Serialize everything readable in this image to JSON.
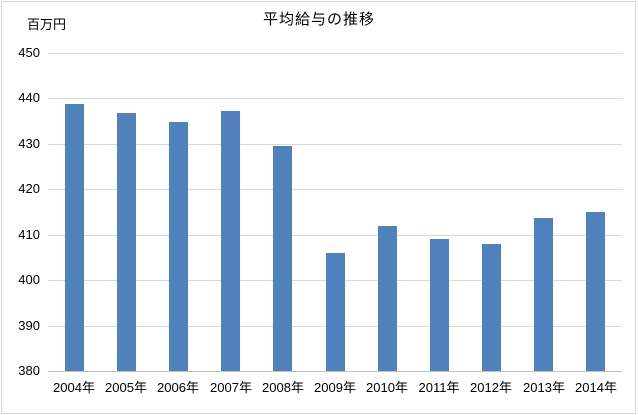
{
  "chart_data": {
    "type": "bar",
    "title": "平均給与の推移",
    "unit_label": "百万円",
    "categories": [
      "2004年",
      "2005年",
      "2006年",
      "2007年",
      "2008年",
      "2009年",
      "2010年",
      "2011年",
      "2012年",
      "2013年",
      "2014年"
    ],
    "values": [
      438.8,
      436.8,
      434.9,
      437.2,
      429.6,
      405.9,
      412.0,
      409.0,
      408.0,
      413.6,
      415.0
    ],
    "xlabel": "",
    "ylabel": "百万円",
    "ylim": [
      380,
      450
    ],
    "yticks": [
      450,
      440,
      430,
      420,
      410,
      400,
      390,
      380
    ],
    "grid": true,
    "legend_position": "none",
    "colors": {
      "bar": "#4f81bd",
      "gridline": "#d9d9d9",
      "axis_line": "#bfbfbf",
      "text": "#000000",
      "background": "#ffffff",
      "border": "#d7d7d7"
    }
  }
}
